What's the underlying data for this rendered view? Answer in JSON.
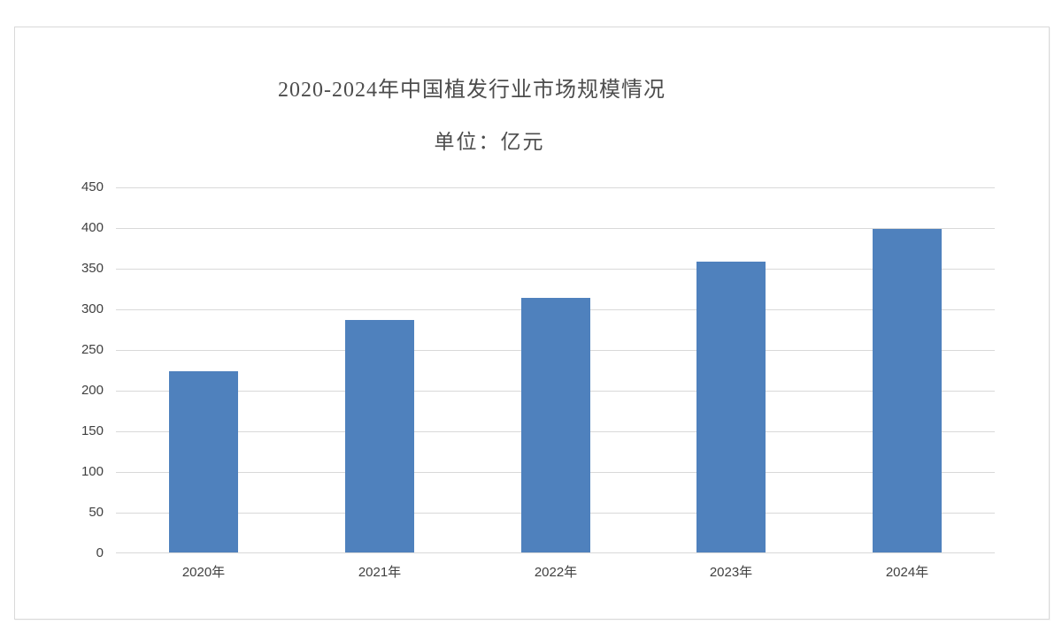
{
  "page": {
    "background_color": "#ffffff",
    "frame_border_color": "#d9d9d9"
  },
  "chart_data": {
    "type": "bar",
    "title": "2020-2024年中国植发行业市场规模情况",
    "subtitle": "单位：亿元",
    "unit": "亿元",
    "categories": [
      "2020年",
      "2021年",
      "2022年",
      "2023年",
      "2024年"
    ],
    "values": [
      223,
      286,
      313,
      358,
      398
    ],
    "xlabel": "",
    "ylabel": "",
    "ylim": [
      0,
      450
    ],
    "yticks": [
      0,
      50,
      100,
      150,
      200,
      250,
      300,
      350,
      400,
      450
    ],
    "grid": true,
    "legend": "none",
    "bar_color": "#4f81bd",
    "gridline_color": "#d9d9d9",
    "tick_label_color": "#404040",
    "title_color": "#4d4d4d"
  }
}
